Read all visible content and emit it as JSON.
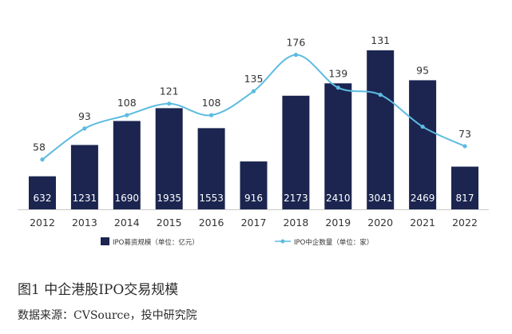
{
  "colors": {
    "bar": "#1b2550",
    "line": "#5cbbe0",
    "bar_label": "#ffffff",
    "axis": "#c9c9c9",
    "text": "#333333"
  },
  "chart_data": {
    "type": "bar",
    "categories": [
      "2012",
      "2013",
      "2014",
      "2015",
      "2016",
      "2017",
      "2018",
      "2019",
      "2020",
      "2021",
      "2022"
    ],
    "series": [
      {
        "name": "IPO募资规模（单位：亿元）",
        "type": "bar",
        "values": [
          632,
          1231,
          1690,
          1935,
          1553,
          916,
          2173,
          2410,
          3041,
          2469,
          817
        ]
      },
      {
        "name": "IPO中企数量（单位：家）",
        "type": "line",
        "values": [
          58,
          93,
          108,
          121,
          108,
          135,
          176,
          139,
          131,
          95,
          73
        ]
      }
    ],
    "grid": false,
    "legend_position": "bottom"
  },
  "caption": "图1  中企港股IPO交易规模",
  "source": "数据来源：CVSource，投中研究院"
}
